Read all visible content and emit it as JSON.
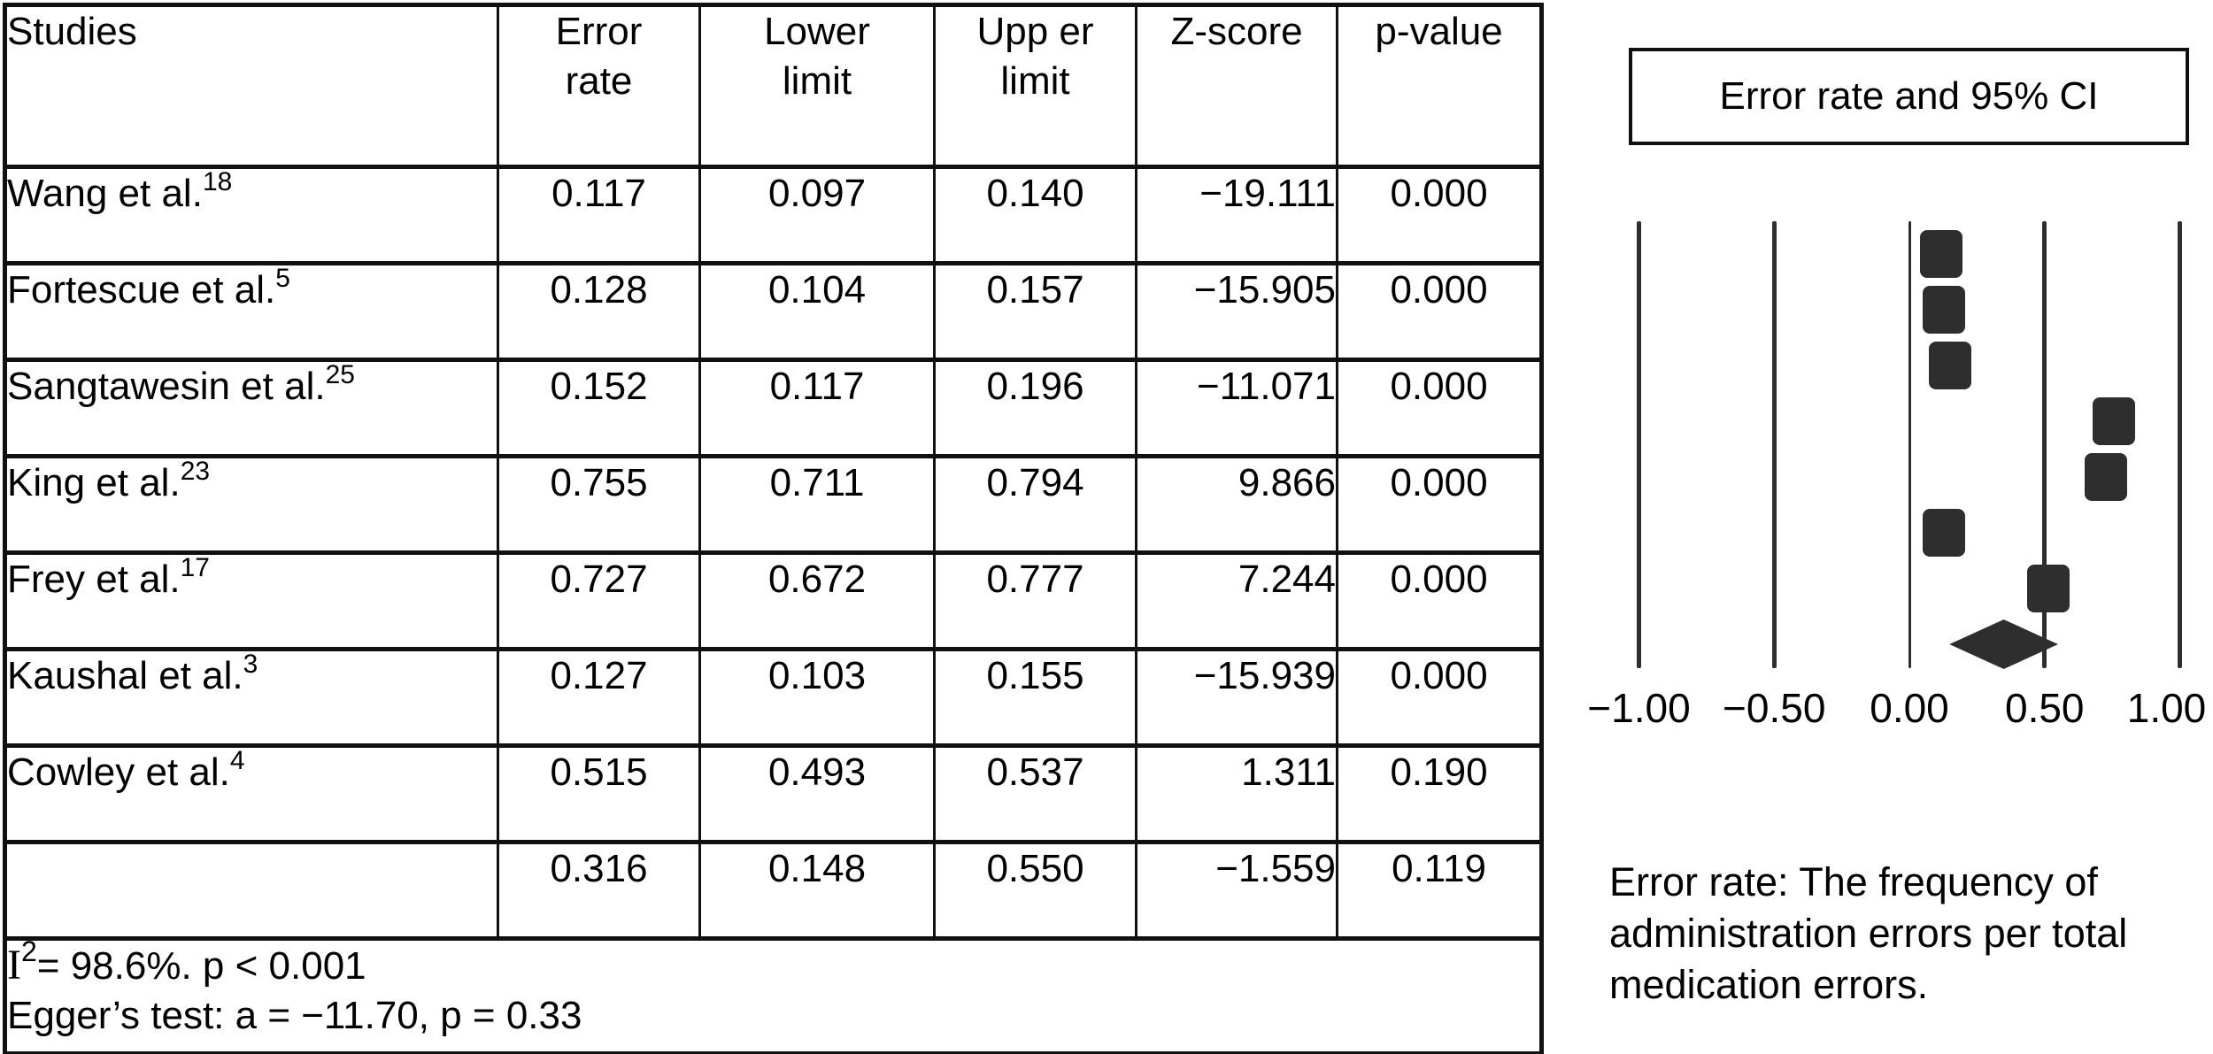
{
  "table": {
    "headers": {
      "studies": "Studies",
      "error_rate": "Error\nrate",
      "lower_limit": "Lower\nlimit",
      "upper_limit": "Upp er\nlimit",
      "z_score": "Z-score",
      "p_value": "p-value"
    },
    "rows": [
      {
        "study": "Wang et al.",
        "ref": "18",
        "error_rate": "0.117",
        "lower": "0.097",
        "upper": "0.140",
        "z": "−19.111",
        "p": "0.000"
      },
      {
        "study": "Fortescue et al.",
        "ref": "5",
        "error_rate": "0.128",
        "lower": "0.104",
        "upper": "0.157",
        "z": "−15.905",
        "p": "0.000"
      },
      {
        "study": "Sangtawesin et al.",
        "ref": "25",
        "error_rate": "0.152",
        "lower": "0.117",
        "upper": "0.196",
        "z": "−11.071",
        "p": "0.000"
      },
      {
        "study": "King et al.",
        "ref": "23",
        "error_rate": "0.755",
        "lower": "0.711",
        "upper": "0.794",
        "z": "9.866",
        "p": "0.000"
      },
      {
        "study": "Frey et al.",
        "ref": "17",
        "error_rate": "0.727",
        "lower": "0.672",
        "upper": "0.777",
        "z": "7.244",
        "p": "0.000"
      },
      {
        "study": "Kaushal et al.",
        "ref": "3",
        "error_rate": "0.127",
        "lower": "0.103",
        "upper": "0.155",
        "z": "−15.939",
        "p": "0.000"
      },
      {
        "study": "Cowley et al.",
        "ref": "4",
        "error_rate": "0.515",
        "lower": "0.493",
        "upper": "0.537",
        "z": "1.311",
        "p": "0.190"
      },
      {
        "study": "",
        "ref": "",
        "error_rate": "0.316",
        "lower": "0.148",
        "upper": "0.550",
        "z": "−1.559",
        "p": "0.119"
      }
    ],
    "footer": {
      "i2_base": "I",
      "i2_sup": "2",
      "i2_rest": "= 98.6%. p < 0.001",
      "eggers": "Egger’s test: a = −11.70, p = 0.33"
    }
  },
  "plot": {
    "title": "Error rate and 95% CI",
    "caption_lines": [
      "Error rate: The frequency of",
      "administration errors per total",
      "medication errors."
    ]
  },
  "chart_data": {
    "type": "scatter",
    "subtype": "forest-plot",
    "title": "Error rate and 95% CI",
    "xlabel": "Error rate",
    "xlim": [
      -1.0,
      1.0
    ],
    "x_ticks": [
      -1.0,
      -0.5,
      0.0,
      0.5,
      1.0
    ],
    "x_tick_labels": [
      "−1.00",
      "−0.50",
      "0.00",
      "0.50",
      "1.00"
    ],
    "grid": "vertical-lines-at-ticks",
    "legend_position": "top-right-box",
    "studies": [
      {
        "label": "Wang et al. (18)",
        "error_rate": 0.117,
        "lower": 0.097,
        "upper": 0.14,
        "z": -19.111,
        "p": 0.0
      },
      {
        "label": "Fortescue et al. (5)",
        "error_rate": 0.128,
        "lower": 0.104,
        "upper": 0.157,
        "z": -15.905,
        "p": 0.0
      },
      {
        "label": "Sangtawesin et al. (25)",
        "error_rate": 0.152,
        "lower": 0.117,
        "upper": 0.196,
        "z": -11.071,
        "p": 0.0
      },
      {
        "label": "King et al. (23)",
        "error_rate": 0.755,
        "lower": 0.711,
        "upper": 0.794,
        "z": 9.866,
        "p": 0.0
      },
      {
        "label": "Frey et al. (17)",
        "error_rate": 0.727,
        "lower": 0.672,
        "upper": 0.777,
        "z": 7.244,
        "p": 0.0
      },
      {
        "label": "Kaushal et al. (3)",
        "error_rate": 0.127,
        "lower": 0.103,
        "upper": 0.155,
        "z": -15.939,
        "p": 0.0
      },
      {
        "label": "Cowley et al. (4)",
        "error_rate": 0.515,
        "lower": 0.493,
        "upper": 0.537,
        "z": 1.311,
        "p": 0.19
      }
    ],
    "summary": {
      "marker": "diamond",
      "error_rate": 0.316,
      "lower": 0.148,
      "upper": 0.55,
      "z": -1.559,
      "p": 0.119
    },
    "heterogeneity": "I2 = 98.6%. p < 0.001",
    "eggers_test": "a = −11.70, p = 0.33"
  }
}
